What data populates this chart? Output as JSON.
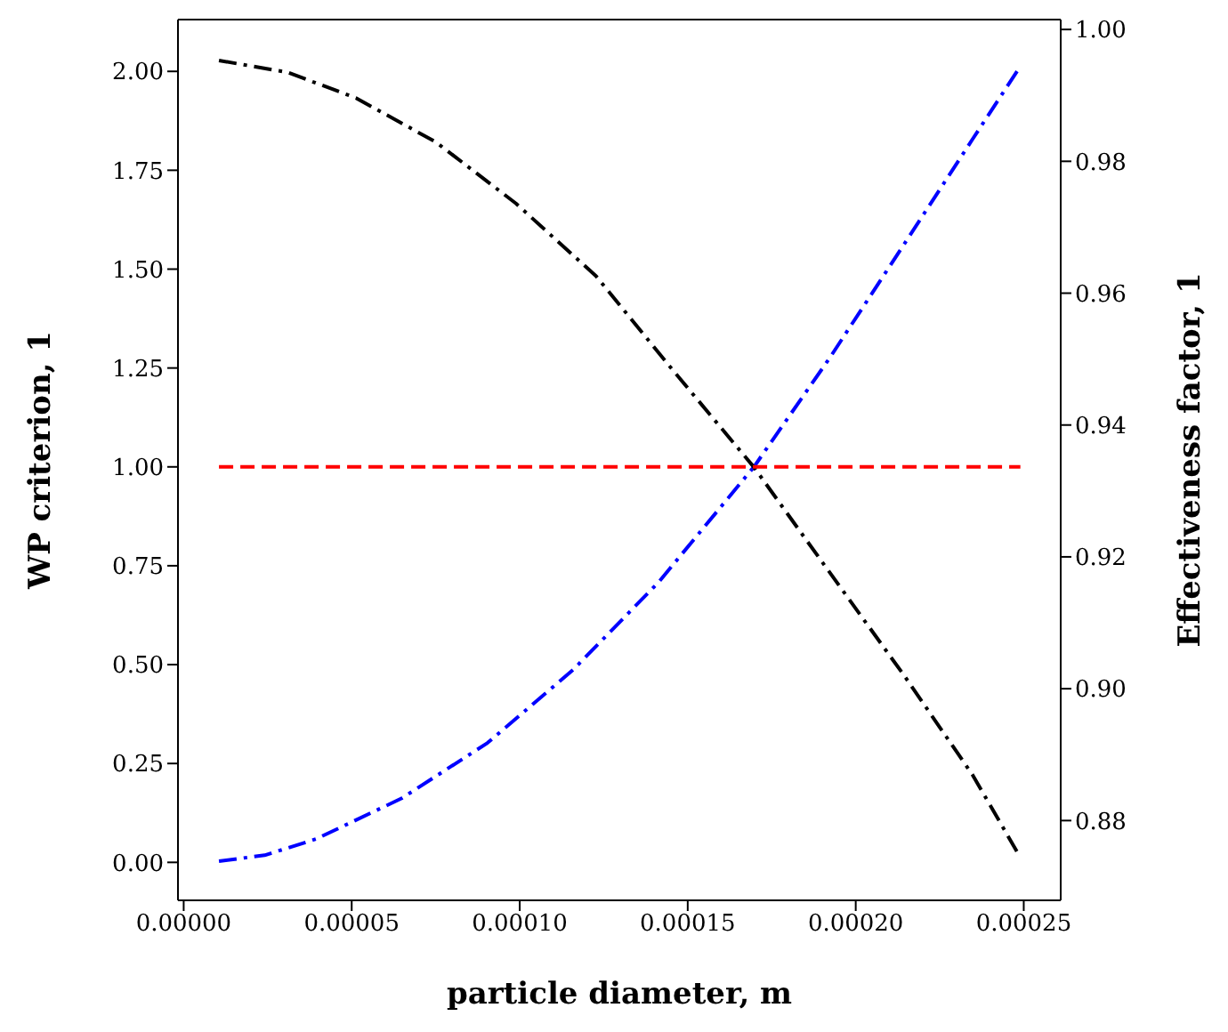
{
  "chart_data": {
    "type": "line",
    "xlabel": "particle diameter, m",
    "ylabel": "WP criterion, 1",
    "y2label": "Effectiveness factor, 1",
    "xlim": [
      -1.7e-06,
      0.000261
    ],
    "xticks": [
      {
        "value": 0,
        "label": "0.00000"
      },
      {
        "value": 5e-05,
        "label": "0.00005"
      },
      {
        "value": 0.0001,
        "label": "0.00010"
      },
      {
        "value": 0.00015,
        "label": "0.00015"
      },
      {
        "value": 0.0002,
        "label": "0.00020"
      },
      {
        "value": 0.00025,
        "label": "0.00025"
      }
    ],
    "ylim": [
      -0.096,
      2.131
    ],
    "yticks": [
      {
        "value": 0,
        "label": "0.00"
      },
      {
        "value": 0.25,
        "label": "0.25"
      },
      {
        "value": 0.5,
        "label": "0.50"
      },
      {
        "value": 0.75,
        "label": "0.75"
      },
      {
        "value": 1,
        "label": "1.00"
      },
      {
        "value": 1.25,
        "label": "1.25"
      },
      {
        "value": 1.5,
        "label": "1.50"
      },
      {
        "value": 1.75,
        "label": "1.75"
      },
      {
        "value": 2,
        "label": "2.00"
      }
    ],
    "y2lim": [
      0.8679,
      1.0015
    ],
    "y2ticks": [
      {
        "value": 0.88,
        "label": "0.88"
      },
      {
        "value": 0.9,
        "label": "0.90"
      },
      {
        "value": 0.92,
        "label": "0.92"
      },
      {
        "value": 0.94,
        "label": "0.94"
      },
      {
        "value": 0.96,
        "label": "0.96"
      },
      {
        "value": 0.98,
        "label": "0.98"
      },
      {
        "value": 1,
        "label": "1.00"
      }
    ],
    "marker": "none",
    "series": [
      {
        "color": "#0000ff",
        "line_style": "dashdot",
        "x": [
          1.05e-05,
          2.41e-05,
          3.94e-05,
          6.49e-05,
          9.04e-05,
          0.0001159,
          0.0001413,
          0.0001697,
          0.0001923,
          0.0002144,
          0.0002348,
          0.000249
        ],
        "values": [
          0.003,
          0.018,
          0.059,
          0.162,
          0.302,
          0.487,
          0.708,
          1.0,
          1.276,
          1.563,
          1.829,
          2.013
        ]
      },
      {
        "color": "#000000",
        "line_style": "dashdot",
        "axis": "y2",
        "x": [
          1.05e-05,
          3.09e-05,
          5.13e-05,
          7.51e-05,
          9.89e-05,
          0.0001227,
          0.0001448,
          0.0001697,
          0.0001906,
          0.0002144,
          0.0002348,
          0.000249
        ],
        "values": [
          0.9953,
          0.9935,
          0.9896,
          0.9829,
          0.9736,
          0.9626,
          0.9488,
          0.9336,
          0.9188,
          0.902,
          0.8869,
          0.8744
        ]
      },
      {
        "color": "#ff0000",
        "line_style": "dashed",
        "x": [
          1.05e-05,
          0.000249
        ],
        "values": [
          1,
          1
        ]
      }
    ]
  }
}
